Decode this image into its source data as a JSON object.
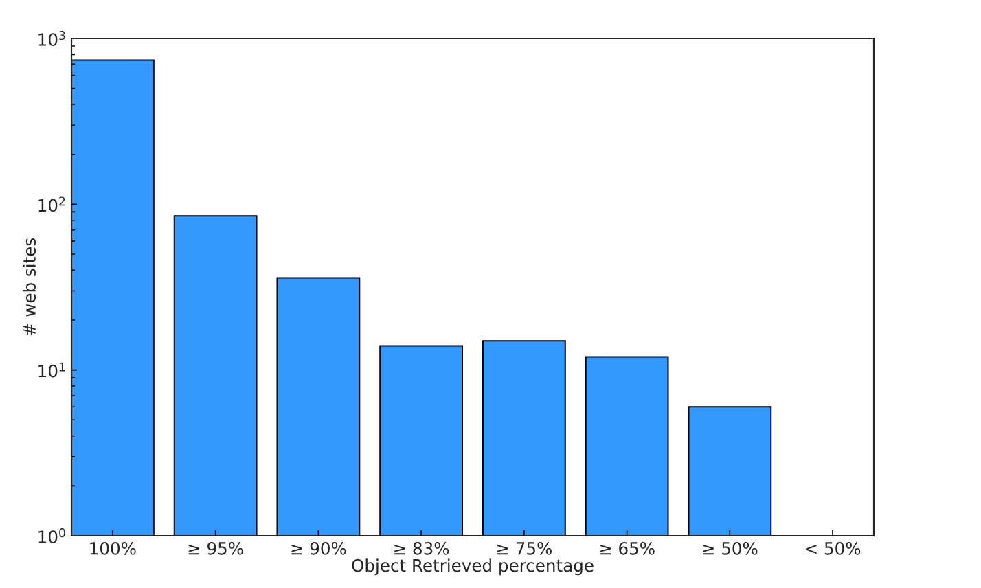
{
  "chart_data": {
    "type": "bar",
    "xlabel": "Object Retrieved percentage",
    "ylabel": "# web sites",
    "categories": [
      "100%",
      "≥ 95%",
      "≥ 90%",
      "≥ 83%",
      "≥ 75%",
      "≥ 65%",
      "≥ 50%",
      "< 50%"
    ],
    "values": [
      740,
      85,
      36,
      14,
      15,
      12,
      6,
      null
    ],
    "color": "#3399ff",
    "log": true,
    "ylim": [
      1,
      1000
    ],
    "yticks": [
      {
        "value": 1,
        "label": "10$^{0}$"
      },
      {
        "value": 10,
        "label": "10$^{1}$"
      },
      {
        "value": 100,
        "label": "10$^{2}$"
      },
      {
        "value": 1000,
        "label": "10$^{3}$"
      }
    ]
  }
}
